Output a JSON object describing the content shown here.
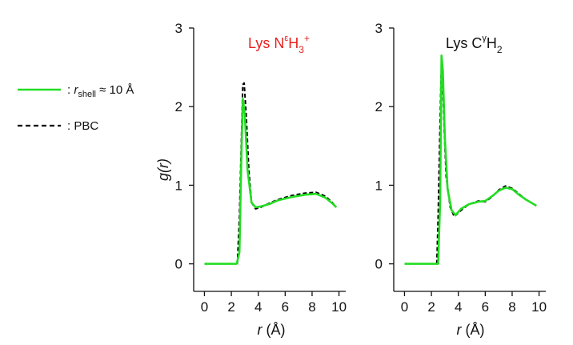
{
  "legend": {
    "green_prefix": ": ",
    "green_var": "r",
    "green_sub": "shell",
    "green_suffix": " ≈ 10 Å",
    "black_label": ": PBC"
  },
  "colors": {
    "shell": "#22dd22",
    "pbc": "#000000",
    "title_left": "#e8201f",
    "title_right": "#111111"
  },
  "y_axis_title": "g(r)",
  "chart_data": [
    {
      "type": "line",
      "title": "Lys NεH3+",
      "title_parts": {
        "base": "Lys N",
        "sup1": "ε",
        "mid": "H",
        "sub": "3",
        "sup2": "+"
      },
      "xlabel": "r (Å)",
      "xlabel_parts": {
        "var": "r",
        "unit": " (Å)"
      },
      "ylabel": "g(r)",
      "xlim": [
        -0.8,
        10.5
      ],
      "ylim": [
        -0.35,
        3.0
      ],
      "xticks": [
        0,
        2,
        4,
        6,
        8,
        10
      ],
      "yticks": [
        0,
        1,
        2,
        3
      ],
      "series": [
        {
          "name": "r_shell ≈ 10 Å",
          "style": "solid",
          "points": [
            [
              0.0,
              0.0
            ],
            [
              2.4,
              0.0
            ],
            [
              2.6,
              0.15
            ],
            [
              2.75,
              1.4
            ],
            [
              2.85,
              2.1
            ],
            [
              3.0,
              1.9
            ],
            [
              3.2,
              1.2
            ],
            [
              3.5,
              0.78
            ],
            [
              3.8,
              0.72
            ],
            [
              4.2,
              0.73
            ],
            [
              4.8,
              0.76
            ],
            [
              5.5,
              0.81
            ],
            [
              6.5,
              0.85
            ],
            [
              7.5,
              0.88
            ],
            [
              8.3,
              0.89
            ],
            [
              9.0,
              0.84
            ],
            [
              9.5,
              0.77
            ],
            [
              9.8,
              0.72
            ]
          ]
        },
        {
          "name": "PBC",
          "style": "dashed",
          "points": [
            [
              2.45,
              0.0
            ],
            [
              2.6,
              0.6
            ],
            [
              2.75,
              1.6
            ],
            [
              2.85,
              2.28
            ],
            [
              2.95,
              2.3
            ],
            [
              3.1,
              1.9
            ],
            [
              3.3,
              1.2
            ],
            [
              3.5,
              0.78
            ],
            [
              3.8,
              0.7
            ],
            [
              4.2,
              0.72
            ],
            [
              4.8,
              0.77
            ],
            [
              5.5,
              0.82
            ],
            [
              6.5,
              0.87
            ],
            [
              7.5,
              0.9
            ],
            [
              8.3,
              0.91
            ],
            [
              9.0,
              0.86
            ],
            [
              9.5,
              0.78
            ],
            [
              9.8,
              0.72
            ]
          ]
        }
      ]
    },
    {
      "type": "line",
      "title": "Lys CγH2",
      "title_parts": {
        "base": "Lys C",
        "sup1": "γ",
        "mid": "H",
        "sub": "2",
        "sup2": ""
      },
      "xlabel": "r (Å)",
      "xlabel_parts": {
        "var": "r",
        "unit": " (Å)"
      },
      "ylabel": "",
      "xlim": [
        -0.8,
        10.5
      ],
      "ylim": [
        -0.35,
        3.0
      ],
      "xticks": [
        0,
        2,
        4,
        6,
        8,
        10
      ],
      "yticks": [
        0,
        1,
        2,
        3
      ],
      "series": [
        {
          "name": "r_shell ≈ 10 Å",
          "style": "solid",
          "points": [
            [
              0.0,
              0.0
            ],
            [
              2.5,
              0.0
            ],
            [
              2.65,
              0.8
            ],
            [
              2.75,
              2.65
            ],
            [
              2.85,
              2.45
            ],
            [
              3.0,
              1.6
            ],
            [
              3.2,
              0.95
            ],
            [
              3.5,
              0.68
            ],
            [
              3.8,
              0.62
            ],
            [
              4.2,
              0.7
            ],
            [
              4.8,
              0.76
            ],
            [
              5.5,
              0.79
            ],
            [
              6.0,
              0.8
            ],
            [
              6.5,
              0.86
            ],
            [
              7.0,
              0.93
            ],
            [
              7.5,
              0.97
            ],
            [
              8.0,
              0.95
            ],
            [
              8.5,
              0.88
            ],
            [
              9.0,
              0.82
            ],
            [
              9.5,
              0.77
            ],
            [
              9.8,
              0.74
            ]
          ]
        },
        {
          "name": "PBC",
          "style": "dashed",
          "points": [
            [
              2.4,
              0.0
            ],
            [
              2.5,
              0.6
            ],
            [
              2.62,
              1.6
            ],
            [
              2.72,
              2.4
            ],
            [
              2.82,
              2.38
            ],
            [
              2.95,
              1.7
            ],
            [
              3.1,
              1.1
            ],
            [
              3.4,
              0.72
            ],
            [
              3.7,
              0.6
            ],
            [
              4.2,
              0.68
            ],
            [
              4.8,
              0.76
            ],
            [
              5.5,
              0.8
            ],
            [
              6.0,
              0.79
            ],
            [
              6.5,
              0.85
            ],
            [
              7.0,
              0.94
            ],
            [
              7.5,
              0.99
            ],
            [
              8.0,
              0.96
            ],
            [
              8.5,
              0.89
            ],
            [
              9.0,
              0.82
            ],
            [
              9.5,
              0.77
            ],
            [
              9.8,
              0.74
            ]
          ]
        }
      ]
    }
  ]
}
